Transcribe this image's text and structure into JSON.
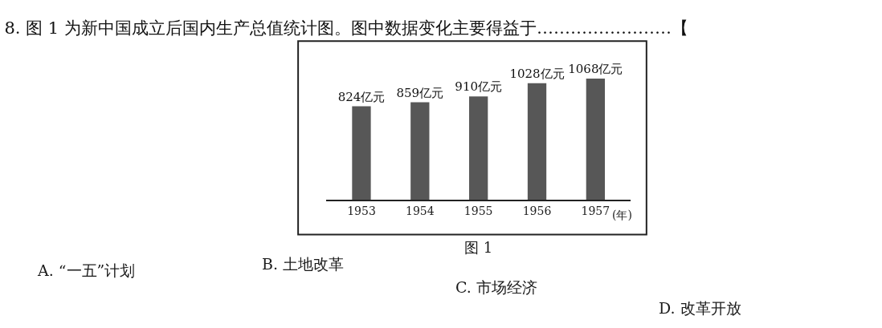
{
  "chart_data": {
    "type": "bar",
    "title": "8. 图 1 为新中国成立后国内生产总值统计图。图中数据变化主要得益于……………………【",
    "categories": [
      "1953",
      "1954",
      "1955",
      "1956",
      "1957"
    ],
    "values": [
      824,
      859,
      910,
      1028,
      1068
    ],
    "color": "#575757",
    "value_labels": [
      "824亿元",
      "859亿元",
      "910亿元",
      "1028亿元",
      "1068亿元"
    ],
    "xlabel": "(年)",
    "annotations": [
      "图 1",
      "A. “一五”计划",
      "B. 土地改革",
      "C. 市场经济",
      "D. 改革开放"
    ]
  }
}
